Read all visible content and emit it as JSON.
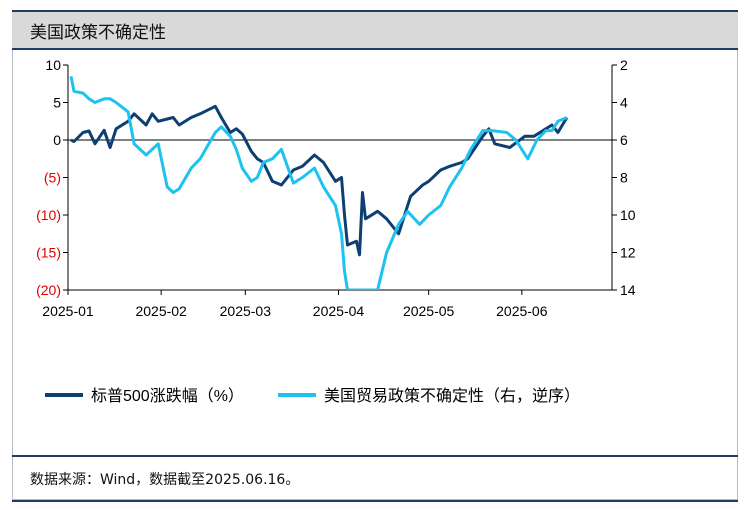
{
  "header": {
    "title": "美国政策不确定性"
  },
  "footer": {
    "source": "数据来源：Wind，数据截至2025.06.16。"
  },
  "chart_data": {
    "type": "line",
    "x_tick_labels": [
      "2025-01",
      "2025-02",
      "2025-03",
      "2025-04",
      "2025-05",
      "2025-06"
    ],
    "y_left": {
      "ticks": [
        "10",
        "5",
        "0",
        "(5)",
        "(10)",
        "(15)",
        "(20)"
      ],
      "values": [
        10,
        5,
        0,
        -5,
        -10,
        -15,
        -20
      ],
      "ylim": [
        -20,
        10
      ],
      "negative_color": "#e00000"
    },
    "y_right": {
      "ticks": [
        "2",
        "4",
        "6",
        "8",
        "10",
        "12",
        "14"
      ],
      "values": [
        2,
        4,
        6,
        8,
        10,
        12,
        14
      ],
      "ylim": [
        2,
        14
      ],
      "reversed": true
    },
    "legend_position": "bottom",
    "series": [
      {
        "name": "标普500涨跌幅（%）",
        "axis": "left",
        "color": "#0d3f73",
        "x": [
          "2025-01-02",
          "2025-01-03",
          "2025-01-06",
          "2025-01-08",
          "2025-01-10",
          "2025-01-13",
          "2025-01-15",
          "2025-01-17",
          "2025-01-21",
          "2025-01-23",
          "2025-01-27",
          "2025-01-29",
          "2025-01-31",
          "2025-02-03",
          "2025-02-05",
          "2025-02-07",
          "2025-02-11",
          "2025-02-14",
          "2025-02-19",
          "2025-02-21",
          "2025-02-24",
          "2025-02-26",
          "2025-02-28",
          "2025-03-03",
          "2025-03-05",
          "2025-03-07",
          "2025-03-10",
          "2025-03-13",
          "2025-03-17",
          "2025-03-20",
          "2025-03-24",
          "2025-03-27",
          "2025-03-31",
          "2025-04-02",
          "2025-04-03",
          "2025-04-04",
          "2025-04-07",
          "2025-04-08",
          "2025-04-09",
          "2025-04-10",
          "2025-04-14",
          "2025-04-17",
          "2025-04-21",
          "2025-04-23",
          "2025-04-25",
          "2025-04-29",
          "2025-05-01",
          "2025-05-05",
          "2025-05-08",
          "2025-05-12",
          "2025-05-14",
          "2025-05-19",
          "2025-05-21",
          "2025-05-23",
          "2025-05-28",
          "2025-06-02",
          "2025-06-05",
          "2025-06-09",
          "2025-06-11",
          "2025-06-13",
          "2025-06-16"
        ],
        "values": [
          0,
          -0.2,
          1.0,
          1.2,
          -0.5,
          1.3,
          -1.0,
          1.5,
          2.5,
          3.5,
          2.0,
          3.5,
          2.5,
          2.8,
          3.0,
          2.0,
          3.0,
          3.5,
          4.5,
          3.0,
          1.0,
          1.5,
          0.8,
          -1.5,
          -2.5,
          -3.0,
          -5.5,
          -6.0,
          -4.0,
          -3.5,
          -2.0,
          -3.0,
          -5.5,
          -5.0,
          -10.0,
          -14.0,
          -13.5,
          -15.3,
          -7.0,
          -10.5,
          -9.5,
          -10.5,
          -12.5,
          -10.0,
          -7.5,
          -6.0,
          -5.5,
          -4.0,
          -3.5,
          -3.0,
          -2.5,
          0.5,
          1.5,
          -0.5,
          -1.0,
          0.5,
          0.5,
          1.5,
          2.0,
          1.0,
          3.0
        ]
      },
      {
        "name": "美国贸易政策不确定性（右，逆序）",
        "axis": "right",
        "color": "#1ec2ef",
        "x": [
          "2025-01-02",
          "2025-01-03",
          "2025-01-06",
          "2025-01-08",
          "2025-01-10",
          "2025-01-13",
          "2025-01-15",
          "2025-01-17",
          "2025-01-21",
          "2025-01-23",
          "2025-01-27",
          "2025-01-29",
          "2025-01-31",
          "2025-02-03",
          "2025-02-05",
          "2025-02-07",
          "2025-02-11",
          "2025-02-14",
          "2025-02-19",
          "2025-02-21",
          "2025-02-24",
          "2025-02-26",
          "2025-02-28",
          "2025-03-03",
          "2025-03-05",
          "2025-03-07",
          "2025-03-10",
          "2025-03-13",
          "2025-03-17",
          "2025-03-20",
          "2025-03-24",
          "2025-03-27",
          "2025-03-31",
          "2025-04-02",
          "2025-04-03",
          "2025-04-04",
          "2025-04-07",
          "2025-04-09",
          "2025-04-14",
          "2025-04-17",
          "2025-04-21",
          "2025-04-24",
          "2025-04-28",
          "2025-05-01",
          "2025-05-05",
          "2025-05-08",
          "2025-05-12",
          "2025-05-15",
          "2025-05-19",
          "2025-05-22",
          "2025-05-27",
          "2025-05-30",
          "2025-06-03",
          "2025-06-06",
          "2025-06-09",
          "2025-06-11",
          "2025-06-13",
          "2025-06-16"
        ],
        "values": [
          2.6,
          3.4,
          3.5,
          3.8,
          4.0,
          3.8,
          3.8,
          4.0,
          4.5,
          6.2,
          6.8,
          6.5,
          6.2,
          8.5,
          8.8,
          8.6,
          7.5,
          7.0,
          5.6,
          5.3,
          5.8,
          6.5,
          7.5,
          8.2,
          8.0,
          7.2,
          7.0,
          6.5,
          8.3,
          8.0,
          7.5,
          8.5,
          9.5,
          11.0,
          13.0,
          14.5,
          14.5,
          14.5,
          14.0,
          12.0,
          10.5,
          9.8,
          10.5,
          10.0,
          9.5,
          8.5,
          7.5,
          6.5,
          5.5,
          5.5,
          5.6,
          6.0,
          7.0,
          6.0,
          5.5,
          5.5,
          5.0,
          4.8
        ]
      }
    ]
  }
}
